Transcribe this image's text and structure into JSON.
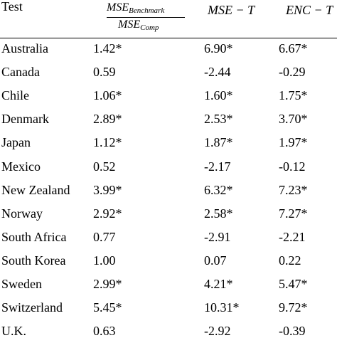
{
  "table": {
    "header": {
      "col0": "Test",
      "col1_numerator_base": "MSE",
      "col1_numerator_sub": "Benchmark",
      "col1_denominator_base": "MSE",
      "col1_denominator_sub": "Comp",
      "col2": "MSE − T",
      "col3": "ENC − T"
    },
    "rows": [
      {
        "country": "Australia",
        "ratio": "1.42*",
        "mse_t": "6.90*",
        "enc_t": "6.67*"
      },
      {
        "country": "Canada",
        "ratio": "0.59",
        "mse_t": "-2.44",
        "enc_t": "-0.29"
      },
      {
        "country": "Chile",
        "ratio": "1.06*",
        "mse_t": "1.60*",
        "enc_t": "1.75*"
      },
      {
        "country": "Denmark",
        "ratio": "2.89*",
        "mse_t": "2.53*",
        "enc_t": "3.70*"
      },
      {
        "country": "Japan",
        "ratio": "1.12*",
        "mse_t": "1.87*",
        "enc_t": "1.97*"
      },
      {
        "country": "Mexico",
        "ratio": "0.52",
        "mse_t": "-2.17",
        "enc_t": "-0.12"
      },
      {
        "country": "New Zealand",
        "ratio": "3.99*",
        "mse_t": "6.32*",
        "enc_t": "7.23*"
      },
      {
        "country": "Norway",
        "ratio": "2.92*",
        "mse_t": "2.58*",
        "enc_t": "7.27*"
      },
      {
        "country": "South Africa",
        "ratio": "0.77",
        "mse_t": "-2.91",
        "enc_t": "-2.21"
      },
      {
        "country": "South Korea",
        "ratio": "1.00",
        "mse_t": "0.07",
        "enc_t": "0.22"
      },
      {
        "country": "Sweden",
        "ratio": "2.99*",
        "mse_t": "4.21*",
        "enc_t": "5.47*"
      },
      {
        "country": "Switzerland",
        "ratio": "5.45*",
        "mse_t": "10.31*",
        "enc_t": "9.72*"
      },
      {
        "country": "U.K.",
        "ratio": "0.63",
        "mse_t": "-2.92",
        "enc_t": "-0.39"
      }
    ]
  }
}
